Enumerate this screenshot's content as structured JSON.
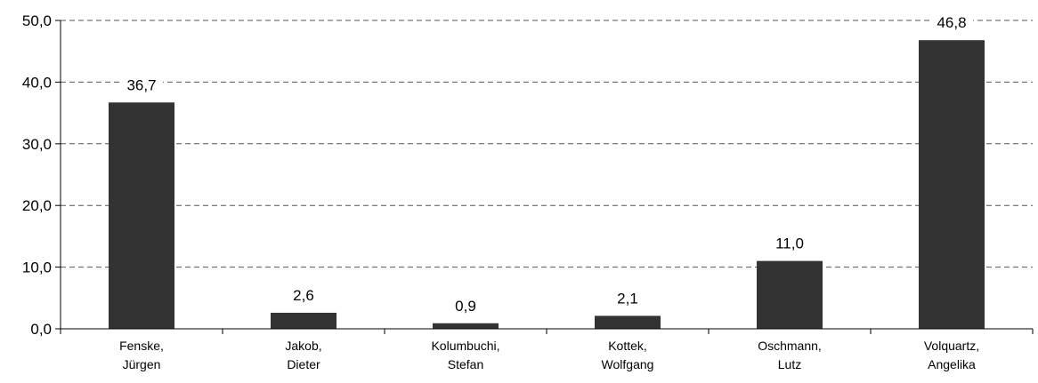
{
  "chart_data": {
    "type": "bar",
    "title": "",
    "xlabel": "",
    "ylabel": "",
    "categories": [
      [
        "Fenske,",
        "Jürgen"
      ],
      [
        "Jakob,",
        "Dieter"
      ],
      [
        "Kolumbuchi,",
        "Stefan"
      ],
      [
        "Kottek,",
        "Wolfgang"
      ],
      [
        "Oschmann,",
        "Lutz"
      ],
      [
        "Volquartz,",
        "Angelika"
      ]
    ],
    "values": [
      36.7,
      2.6,
      0.9,
      2.1,
      11.0,
      46.8
    ],
    "data_labels": [
      "36,7",
      "2,6",
      "0,9",
      "2,1",
      "11,0",
      "46,8"
    ],
    "ylim": [
      0,
      50
    ],
    "yticks": [
      0,
      10,
      20,
      30,
      40,
      50
    ],
    "ytick_labels": [
      "0,0",
      "10,0",
      "20,0",
      "30,0",
      "40,0",
      "50,0"
    ],
    "grid": "horizontal-dashed",
    "legend": "none",
    "colors": {
      "bar": "#333333",
      "grid": "#555555",
      "axis": "#000000"
    }
  }
}
